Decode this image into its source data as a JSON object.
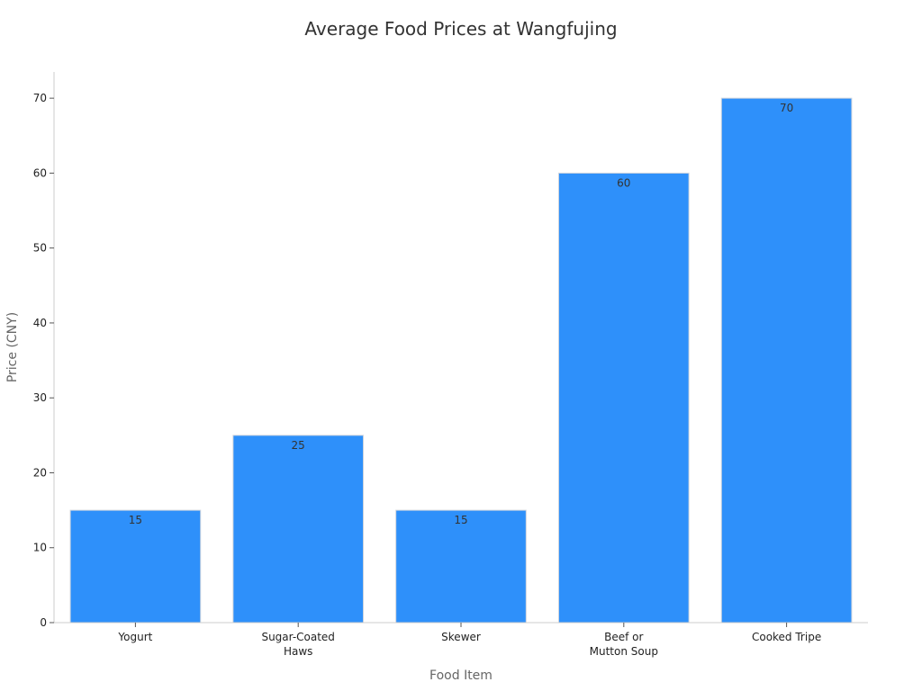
{
  "chart_data": {
    "type": "bar",
    "title": "Average Food Prices at Wangfujing",
    "xlabel": "Food Item",
    "ylabel": "Price (CNY)",
    "categories": [
      [
        "Yogurt"
      ],
      [
        "Sugar-Coated",
        "Haws"
      ],
      [
        "Skewer"
      ],
      [
        "Beef or",
        "Mutton Soup"
      ],
      [
        "Cooked Tripe"
      ]
    ],
    "values": [
      15,
      25,
      15,
      60,
      70
    ],
    "ylim": [
      0,
      73.5
    ],
    "yticks": [
      0,
      10,
      20,
      30,
      40,
      50,
      60,
      70
    ],
    "data_labels": true,
    "grid": false,
    "bar_color": "#2E90FA",
    "bar_edge_color": "#D0D5DD"
  }
}
